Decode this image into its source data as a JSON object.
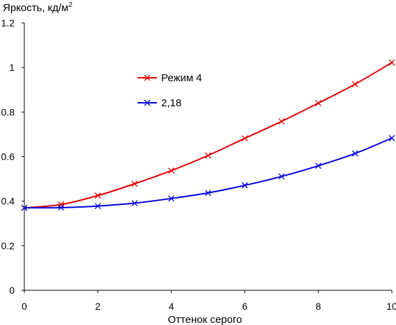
{
  "chart_data": {
    "type": "line",
    "ylabel": "Яркость, кд/м",
    "ylabel_sup": "2",
    "xlabel": "Оттенок серого",
    "xlim": [
      0,
      10
    ],
    "ylim": [
      0,
      1.2
    ],
    "x_ticks": [
      0,
      2,
      4,
      6,
      8,
      10
    ],
    "y_ticks": [
      0,
      0.2,
      0.4,
      0.6,
      0.8,
      1,
      1.2
    ],
    "grid": false,
    "legend_position": "upper-left inside plot",
    "series": [
      {
        "name": "Режим 4",
        "color": "#e00000",
        "marker": "x",
        "x": [
          0,
          1,
          2,
          3,
          4,
          5,
          6,
          7,
          8,
          9,
          10
        ],
        "values": [
          0.37,
          0.385,
          0.425,
          0.478,
          0.537,
          0.605,
          0.682,
          0.758,
          0.84,
          0.925,
          1.022
        ]
      },
      {
        "name": "2,18",
        "color": "#0000e0",
        "marker": "x",
        "x": [
          0,
          1,
          2,
          3,
          4,
          5,
          6,
          7,
          8,
          9,
          10
        ],
        "values": [
          0.37,
          0.371,
          0.378,
          0.391,
          0.412,
          0.437,
          0.471,
          0.511,
          0.559,
          0.614,
          0.683
        ]
      }
    ]
  }
}
